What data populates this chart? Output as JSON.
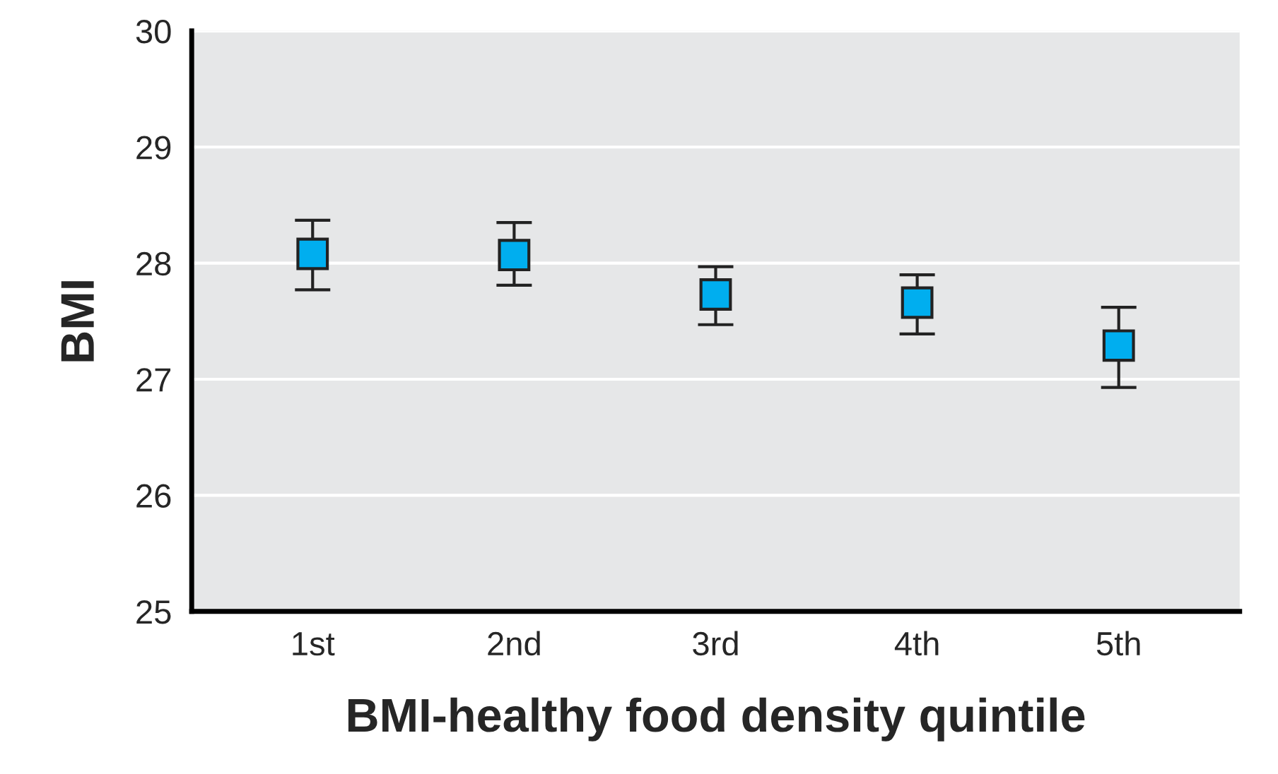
{
  "chart_data": {
    "type": "scatter",
    "xlabel": "BMI-healthy food density quintile",
    "ylabel": "BMI",
    "categories": [
      "1st",
      "2nd",
      "3rd",
      "4th",
      "5th"
    ],
    "values": [
      28.08,
      28.07,
      27.73,
      27.66,
      27.29
    ],
    "errors": [
      [
        27.77,
        28.37
      ],
      [
        27.81,
        28.35
      ],
      [
        27.47,
        27.97
      ],
      [
        27.39,
        27.9
      ],
      [
        26.93,
        27.62
      ]
    ],
    "color": "#00aeef",
    "marker": "square",
    "ylim": [
      25,
      30
    ],
    "yticks": [
      25,
      26,
      27,
      28,
      29,
      30
    ],
    "grid": "y"
  }
}
